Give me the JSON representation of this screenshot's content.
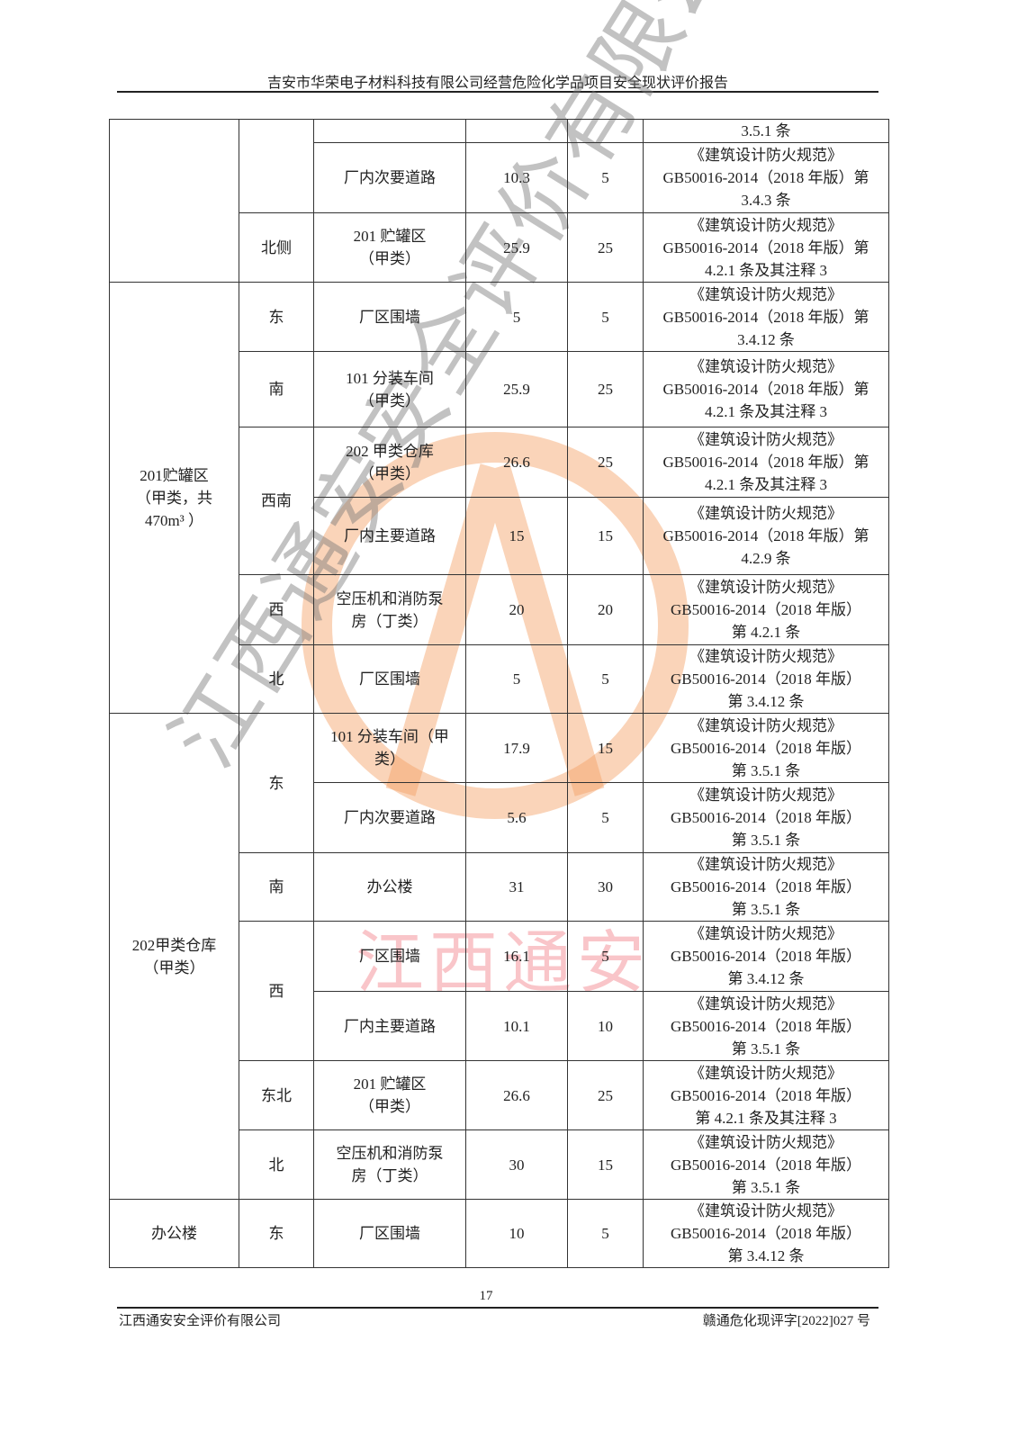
{
  "header": {
    "title": "吉安市华荣电子材料科技有限公司经营危险化学品项目安全现状评价报告"
  },
  "watermark": {
    "logo": "A",
    "text": "江西通安安全评价有限公司",
    "pink_text": "江西通安",
    "logo_color": "#f5a064"
  },
  "table": {
    "groups": [
      {
        "name": "",
        "directions": [
          {
            "dir": "",
            "items": [
              {
                "target": "",
                "actual": "",
                "required": "",
                "basis": [
                  "3.5.1 条"
                ]
              },
              {
                "target": "厂内次要道路",
                "actual": "10.3",
                "required": "5",
                "basis": [
                  "《建筑设计防火规范》",
                  "GB50016-2014（2018 年版）第",
                  "3.4.3 条"
                ]
              }
            ]
          },
          {
            "dir": "北侧",
            "items": [
              {
                "target": "201 贮罐区\n（甲类）",
                "actual": "25.9",
                "required": "25",
                "basis": [
                  "《建筑设计防火规范》",
                  "GB50016-2014（2018 年版）第",
                  "4.2.1 条及其注释 3"
                ]
              }
            ]
          }
        ]
      },
      {
        "name": "201贮罐区\n（甲类，共\n470m³ ）",
        "directions": [
          {
            "dir": "东",
            "items": [
              {
                "target": "厂区围墙",
                "actual": "5",
                "required": "5",
                "basis": [
                  "《建筑设计防火规范》",
                  "GB50016-2014（2018 年版）第",
                  "3.4.12 条"
                ]
              }
            ]
          },
          {
            "dir": "南",
            "items": [
              {
                "target": "101 分装车间\n（甲类）",
                "actual": "25.9",
                "required": "25",
                "basis": [
                  "《建筑设计防火规范》",
                  "GB50016-2014（2018 年版）第",
                  "4.2.1 条及其注释 3"
                ]
              }
            ]
          },
          {
            "dir": "西南",
            "items": [
              {
                "target": "202 甲类仓库\n（甲类）",
                "actual": "26.6",
                "required": "25",
                "basis": [
                  "《建筑设计防火规范》",
                  "GB50016-2014（2018 年版）第",
                  "4.2.1 条及其注释 3"
                ]
              },
              {
                "target": "厂内主要道路",
                "actual": "15",
                "required": "15",
                "basis": [
                  "《建筑设计防火规范》",
                  "GB50016-2014（2018 年版）第",
                  "4.2.9 条"
                ]
              }
            ]
          },
          {
            "dir": "西",
            "items": [
              {
                "target": "空压机和消防泵\n房（丁类）",
                "actual": "20",
                "required": "20",
                "basis": [
                  "《建筑设计防火规范》",
                  "GB50016-2014（2018 年版）",
                  "第 4.2.1 条"
                ]
              }
            ]
          },
          {
            "dir": "北",
            "items": [
              {
                "target": "厂区围墙",
                "actual": "5",
                "required": "5",
                "basis": [
                  "《建筑设计防火规范》",
                  "GB50016-2014（2018 年版）",
                  "第 3.4.12 条"
                ]
              }
            ]
          }
        ]
      },
      {
        "name": "202甲类仓库\n（甲类）",
        "directions": [
          {
            "dir": "东",
            "items": [
              {
                "target": "101 分装车间（甲\n类）",
                "actual": "17.9",
                "required": "15",
                "basis": [
                  "《建筑设计防火规范》",
                  "GB50016-2014（2018 年版）",
                  "第 3.5.1 条"
                ]
              },
              {
                "target": "厂内次要道路",
                "actual": "5.6",
                "required": "5",
                "basis": [
                  "《建筑设计防火规范》",
                  "GB50016-2014（2018 年版）",
                  "第 3.5.1 条"
                ]
              }
            ]
          },
          {
            "dir": "南",
            "items": [
              {
                "target": "办公楼",
                "actual": "31",
                "required": "30",
                "basis": [
                  "《建筑设计防火规范》",
                  "GB50016-2014（2018 年版）",
                  "第 3.5.1 条"
                ]
              }
            ]
          },
          {
            "dir": "西",
            "items": [
              {
                "target": "厂区围墙",
                "actual": "16.1",
                "required": "5",
                "basis": [
                  "《建筑设计防火规范》",
                  "GB50016-2014（2018 年版）",
                  "第 3.4.12 条"
                ]
              },
              {
                "target": "厂内主要道路",
                "actual": "10.1",
                "required": "10",
                "basis": [
                  "《建筑设计防火规范》",
                  "GB50016-2014（2018 年版）",
                  "第 3.5.1 条"
                ]
              }
            ]
          },
          {
            "dir": "东北",
            "items": [
              {
                "target": "201 贮罐区\n（甲类）",
                "actual": "26.6",
                "required": "25",
                "basis": [
                  "《建筑设计防火规范》",
                  "GB50016-2014（2018 年版）",
                  "第 4.2.1 条及其注释 3"
                ]
              }
            ]
          },
          {
            "dir": "北",
            "items": [
              {
                "target": "空压机和消防泵\n房（丁类）",
                "actual": "30",
                "required": "15",
                "basis": [
                  "《建筑设计防火规范》",
                  "GB50016-2014（2018 年版）",
                  "第 3.5.1 条"
                ]
              }
            ]
          }
        ]
      },
      {
        "name": "办公楼",
        "directions": [
          {
            "dir": "东",
            "items": [
              {
                "target": "厂区围墙",
                "actual": "10",
                "required": "5",
                "basis": [
                  "《建筑设计防火规范》",
                  "GB50016-2014（2018 年版）",
                  "第 3.4.12 条"
                ]
              }
            ]
          }
        ]
      }
    ]
  },
  "footer": {
    "page_number": "17",
    "company": "江西通安安全评价有限公司",
    "doc_number": "赣通危化现评字[2022]027 号"
  }
}
